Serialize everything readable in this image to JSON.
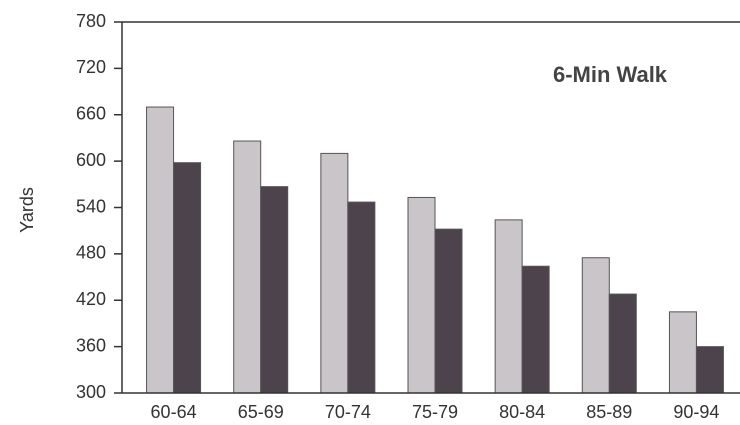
{
  "chart_data": {
    "type": "bar",
    "title": "6-Min Walk",
    "y_label": "Yards",
    "categories": [
      "60-64",
      "65-69",
      "70-74",
      "75-79",
      "80-84",
      "85-89",
      "90-94"
    ],
    "series": [
      {
        "color": "#c9c5c9",
        "values": [
          670,
          626,
          610,
          553,
          524,
          475,
          405
        ]
      },
      {
        "color": "#4d434c",
        "values": [
          598,
          567,
          547,
          512,
          464,
          428,
          360
        ]
      }
    ],
    "ylim": [
      300,
      780
    ],
    "yticks": [
      300,
      360,
      420,
      480,
      540,
      600,
      660,
      720,
      780
    ],
    "grid": false
  }
}
